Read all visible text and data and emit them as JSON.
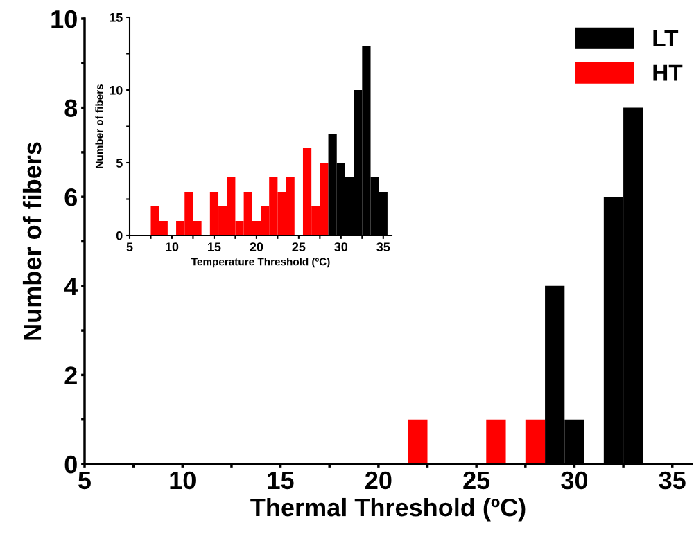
{
  "chart_data": [
    {
      "type": "histogram",
      "xlabel": "Thermal Threshold (ºC)",
      "ylabel": "Number of fibers",
      "bins": [
        21.5,
        22.5,
        23.5,
        24.5,
        25.5,
        26.5,
        27.5,
        28.5,
        29.5,
        30.5,
        31.5,
        32.5,
        33.5
      ],
      "series": [
        {
          "name": "LT",
          "color": "#000000",
          "values": [
            0,
            0,
            0,
            0,
            0,
            0,
            0,
            4,
            1,
            0,
            6,
            8
          ]
        },
        {
          "name": "HT",
          "color": "#ff0000",
          "values": [
            1,
            0,
            0,
            0,
            1,
            0,
            1,
            0,
            0,
            0,
            0,
            0
          ]
        }
      ],
      "xlim": [
        5,
        36
      ],
      "ylim": [
        0,
        10
      ],
      "xticks": [
        5,
        {
          "value": 7.5,
          "label": null
        },
        10,
        {
          "value": 12.5,
          "label": null
        },
        15,
        {
          "value": 17.5,
          "label": null
        },
        20,
        {
          "value": 22.5,
          "label": null
        },
        25,
        {
          "value": 27.5,
          "label": null
        },
        30,
        {
          "value": 32.5,
          "label": null
        },
        35
      ],
      "yticks": [
        0,
        {
          "value": 1,
          "label": null
        },
        2,
        {
          "value": 3,
          "label": null
        },
        4,
        {
          "value": 5,
          "label": null
        },
        6,
        {
          "value": 7,
          "label": null
        },
        8,
        {
          "value": 9,
          "label": null
        },
        10
      ],
      "legend": "top right",
      "grid": false
    },
    {
      "type": "histogram",
      "xlabel": "Temperature Threshold (ºC)",
      "ylabel": "Number of fibers",
      "bins": [
        7.5,
        8.5,
        9.5,
        10.5,
        11.5,
        12.5,
        13.5,
        14.5,
        15.5,
        16.5,
        17.5,
        18.5,
        19.5,
        20.5,
        21.5,
        22.5,
        23.5,
        24.5,
        25.5,
        26.5,
        27.5,
        28.5,
        29.5,
        30.5,
        31.5,
        32.5,
        33.5,
        34.5,
        35.5
      ],
      "series": [
        {
          "color": "#ff0000",
          "values": [
            2,
            1,
            0,
            1,
            3,
            1,
            0,
            3,
            2,
            4,
            1,
            3,
            1,
            2,
            4,
            3,
            4,
            0,
            6,
            2,
            5,
            0,
            0,
            0,
            0,
            0,
            0,
            0
          ]
        },
        {
          "color": "#000000",
          "values": [
            0,
            0,
            0,
            0,
            0,
            0,
            0,
            0,
            0,
            0,
            0,
            0,
            0,
            0,
            0,
            0,
            0,
            0,
            0,
            0,
            0,
            7,
            5,
            4,
            10,
            13,
            4,
            3
          ]
        }
      ],
      "xlim": [
        5,
        36
      ],
      "ylim": [
        0,
        15
      ],
      "xticks": [
        5,
        {
          "value": 7.5,
          "label": null
        },
        10,
        {
          "value": 12.5,
          "label": null
        },
        15,
        {
          "value": 17.5,
          "label": null
        },
        20,
        {
          "value": 22.5,
          "label": null
        },
        25,
        {
          "value": 27.5,
          "label": null
        },
        30,
        {
          "value": 32.5,
          "label": null
        },
        35
      ],
      "yticks": [
        0,
        {
          "value": 2.5,
          "label": null
        },
        5,
        {
          "value": 7.5,
          "label": null
        },
        10,
        {
          "value": 12.5,
          "label": null
        },
        15
      ],
      "grid": false
    }
  ]
}
